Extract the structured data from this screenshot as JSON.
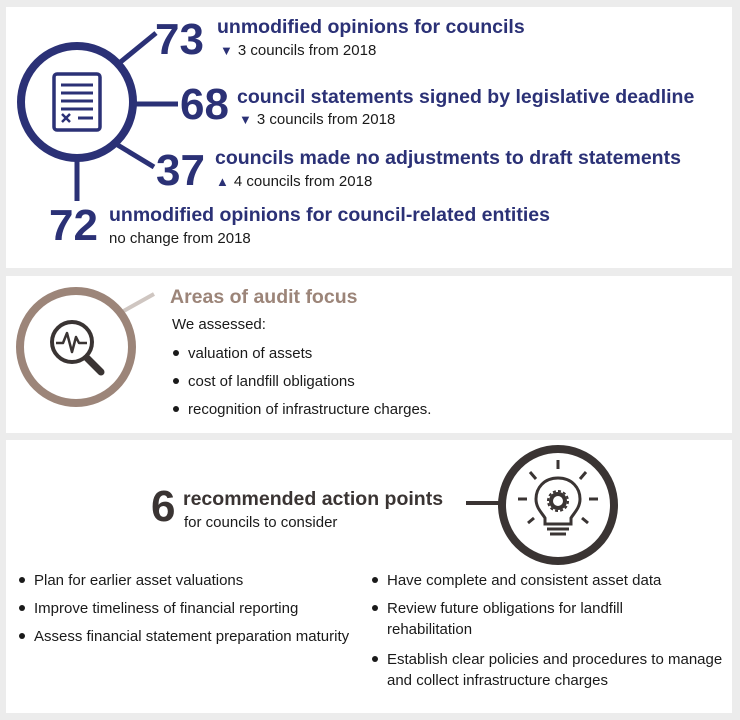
{
  "stats": [
    {
      "number": "73",
      "heading": "unmodified opinions for councils",
      "trend": "down",
      "change": "3 councils from 2018"
    },
    {
      "number": "68",
      "heading": "council statements signed by legislative deadline",
      "trend": "down",
      "change": "3 councils from 2018"
    },
    {
      "number": "37",
      "heading": "councils made no adjustments to draft statements",
      "trend": "up",
      "change": "4 councils from 2018"
    },
    {
      "number": "72",
      "heading": "unmodified opinions for council-related entities",
      "trend": "none",
      "change": "no change from 2018"
    }
  ],
  "trend_symbols": {
    "down": "▼",
    "up": "▲"
  },
  "audit_focus": {
    "title": "Areas of audit focus",
    "intro": "We assessed:",
    "items": [
      "valuation of assets",
      "cost of landfill obligations",
      "recognition of infrastructure charges."
    ]
  },
  "recommendations": {
    "count": "6",
    "heading": "recommended action points",
    "subheading": "for councils to consider",
    "left_items": [
      "Plan for earlier asset valuations",
      "Improve timeliness of financial reporting",
      "Assess financial statement preparation maturity"
    ],
    "right_items": [
      "Have complete and consistent asset data",
      "Review future obligations for landfill rehabilitation",
      "Establish clear policies and procedures to manage and collect infrastructure charges"
    ]
  },
  "icons": {
    "document": "document-icon",
    "magnifier": "magnifier-pulse-icon",
    "lightbulb": "lightbulb-gear-icon"
  },
  "colors": {
    "navy": "#2b3176",
    "taupe": "#9c8579",
    "dark": "#3a3433",
    "background": "#ececec"
  }
}
